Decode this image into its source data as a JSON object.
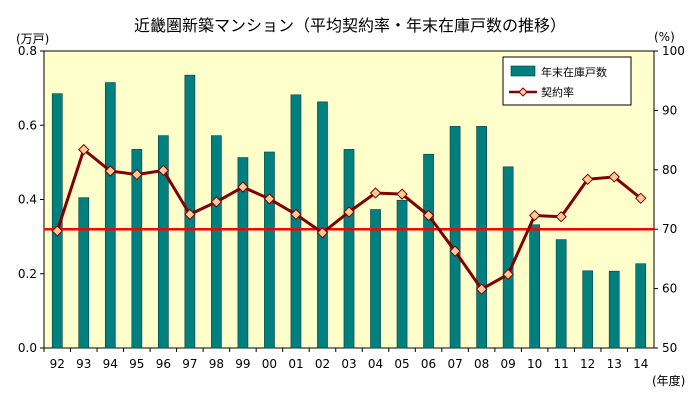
{
  "chart_data": {
    "type": "bar",
    "title": "近畿圏新築マンション（平均契約率・年末在庫戸数の推移）",
    "y_unit_left": "(万戸)",
    "y_unit_right": "(%)",
    "x_unit": "(年度)",
    "categories": [
      "92",
      "93",
      "94",
      "95",
      "96",
      "97",
      "98",
      "99",
      "00",
      "01",
      "02",
      "03",
      "04",
      "05",
      "06",
      "07",
      "08",
      "09",
      "10",
      "11",
      "12",
      "13",
      "14"
    ],
    "ylim_left": [
      0,
      0.8
    ],
    "ylim_right": [
      50,
      100
    ],
    "yticks_left": [
      "0.0",
      "0.2",
      "0.4",
      "0.6",
      "0.8"
    ],
    "yticks_right": [
      "50",
      "60",
      "70",
      "80",
      "90",
      "100"
    ],
    "reference_line": 70,
    "legend_position": "top-right",
    "series": [
      {
        "name": "年末在庫戸数",
        "type": "bar",
        "axis": "left",
        "values": [
          0.685,
          0.405,
          0.715,
          0.535,
          0.572,
          0.735,
          0.572,
          0.513,
          0.528,
          0.682,
          0.663,
          0.535,
          0.373,
          0.398,
          0.522,
          0.597,
          0.597,
          0.488,
          0.332,
          0.292,
          0.208,
          0.207,
          0.227
        ]
      },
      {
        "name": "契約率",
        "type": "line",
        "axis": "right",
        "values": [
          69.7,
          83.4,
          79.8,
          79.2,
          79.9,
          72.5,
          74.6,
          77.1,
          75.1,
          72.5,
          69.4,
          72.9,
          76.1,
          75.9,
          72.3,
          66.3,
          59.9,
          62.4,
          72.3,
          72.1,
          78.4,
          78.8,
          75.2
        ]
      }
    ],
    "colors": {
      "bar": "#007F7F",
      "line": "#800000",
      "marker_fill": "#FFCC99",
      "reference": "#FF0000",
      "plot_bg": "#FFFFCC"
    }
  }
}
